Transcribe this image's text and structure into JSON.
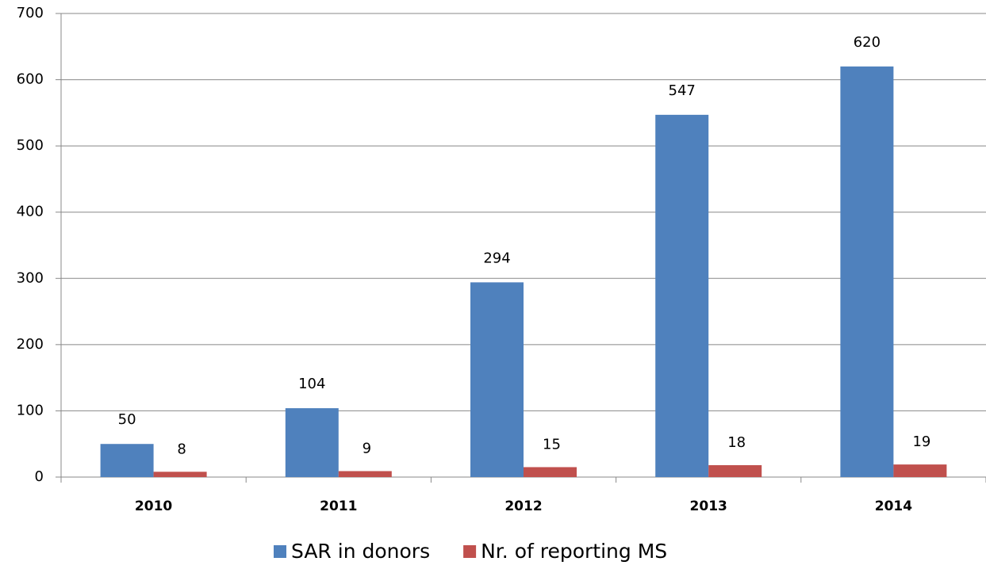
{
  "chart_data": {
    "type": "bar",
    "categories": [
      "2010",
      "2011",
      "2012",
      "2013",
      "2014"
    ],
    "series": [
      {
        "name": "SAR in donors",
        "color": "#4f81bd",
        "values": [
          50,
          104,
          294,
          547,
          620
        ]
      },
      {
        "name": "Nr. of reporting MS",
        "color": "#c0504d",
        "values": [
          8,
          9,
          15,
          18,
          19
        ]
      }
    ],
    "ylim": [
      0,
      700
    ],
    "yticks": [
      0,
      100,
      200,
      300,
      400,
      500,
      600,
      700
    ],
    "grid": true,
    "legend": "bottom"
  }
}
